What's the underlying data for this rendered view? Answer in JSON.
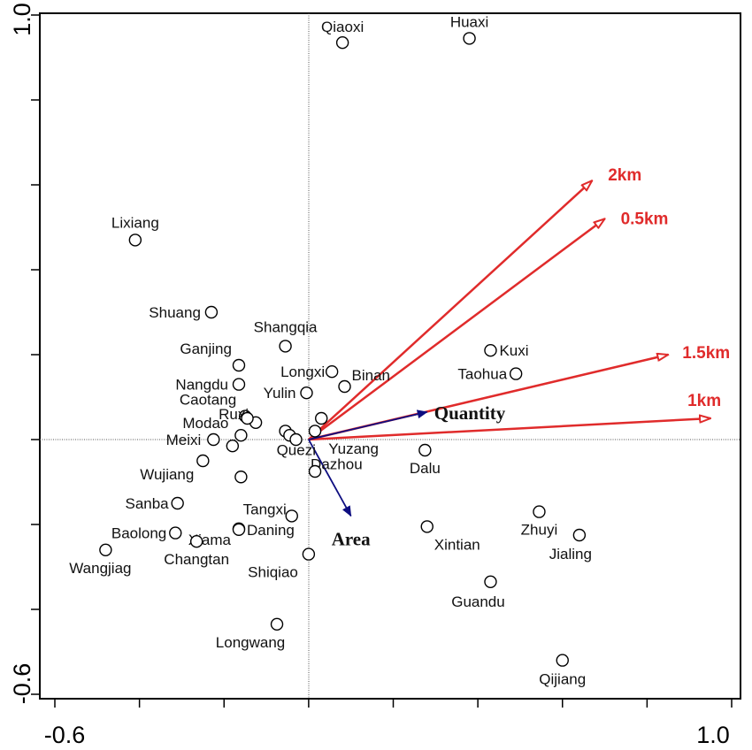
{
  "chart_data": {
    "type": "scatter",
    "xlim": [
      -0.6,
      1.0
    ],
    "ylim": [
      -0.6,
      1.0
    ],
    "x_tick_labels": [
      "-0.6",
      "1.0"
    ],
    "y_tick_labels": [
      "1.0",
      "-0.6"
    ],
    "reference_lines": {
      "x": 0,
      "y": 0,
      "style": "dotted"
    },
    "sites": [
      {
        "name": "Qiaoxi",
        "x": 0.08,
        "y": 0.935
      },
      {
        "name": "Huaxi",
        "x": 0.38,
        "y": 0.945
      },
      {
        "name": "Lixiang",
        "x": -0.41,
        "y": 0.47
      },
      {
        "name": "Shuang",
        "x": -0.23,
        "y": 0.3
      },
      {
        "name": "Shangqia",
        "x": -0.055,
        "y": 0.22
      },
      {
        "name": "Ganjing",
        "x": -0.165,
        "y": 0.175
      },
      {
        "name": "Longxi",
        "x": 0.055,
        "y": 0.16
      },
      {
        "name": "Binan",
        "x": 0.085,
        "y": 0.125
      },
      {
        "name": "Nangdu",
        "x": -0.165,
        "y": 0.13
      },
      {
        "name": "Yulin",
        "x": -0.005,
        "y": 0.11
      },
      {
        "name": "Caotang",
        "x": -0.15,
        "y": 0.055
      },
      {
        "name": "Ruxi",
        "x": -0.125,
        "y": 0.04
      },
      {
        "name": "Modao",
        "x": -0.16,
        "y": 0.01
      },
      {
        "name": "Meixi",
        "x": -0.225,
        "y": 0.0
      },
      {
        "name": "Wujiang",
        "x": -0.25,
        "y": -0.05
      },
      {
        "name": "Kuxi",
        "x": 0.43,
        "y": 0.21
      },
      {
        "name": "Taohua",
        "x": 0.49,
        "y": 0.155
      },
      {
        "name": "Quezi",
        "x": -0.055,
        "y": 0.02
      },
      {
        "name": "Yuzang",
        "x": 0.03,
        "y": 0.05
      },
      {
        "name": "Dazhou",
        "x": 0.015,
        "y": 0.02
      },
      {
        "name": "Dalu",
        "x": 0.275,
        "y": -0.025
      },
      {
        "name": "Sanba",
        "x": -0.31,
        "y": -0.15
      },
      {
        "name": "Xiama",
        "x": -0.165,
        "y": -0.21
      },
      {
        "name": "Daning",
        "x": -0.165,
        "y": -0.212
      },
      {
        "name": "Baolong",
        "x": -0.315,
        "y": -0.22
      },
      {
        "name": "Changtan",
        "x": -0.265,
        "y": -0.24
      },
      {
        "name": "Wangjiag",
        "x": -0.48,
        "y": -0.26
      },
      {
        "name": "Tangxi",
        "x": -0.04,
        "y": -0.18
      },
      {
        "name": "Shiqiao",
        "x": 0.0,
        "y": -0.27
      },
      {
        "name": "Xintian",
        "x": 0.28,
        "y": -0.205
      },
      {
        "name": "Zhuyi",
        "x": 0.545,
        "y": -0.17
      },
      {
        "name": "Jialing",
        "x": 0.64,
        "y": -0.225
      },
      {
        "name": "Guandu",
        "x": 0.43,
        "y": -0.335
      },
      {
        "name": "Longwang",
        "x": -0.075,
        "y": -0.435
      },
      {
        "name": "Qijiang",
        "x": 0.6,
        "y": -0.52
      },
      {
        "name": "",
        "x": -0.045,
        "y": 0.01
      },
      {
        "name": "",
        "x": -0.03,
        "y": 0.0
      },
      {
        "name": "",
        "x": 0.015,
        "y": -0.075
      },
      {
        "name": "",
        "x": -0.18,
        "y": -0.015
      },
      {
        "name": "",
        "x": -0.16,
        "y": -0.088
      },
      {
        "name": "",
        "x": -0.145,
        "y": 0.05
      }
    ],
    "buffer_vectors": [
      {
        "name": "2km",
        "x": 0.67,
        "y": 0.61
      },
      {
        "name": "0.5km",
        "x": 0.7,
        "y": 0.52
      },
      {
        "name": "1.5km",
        "x": 0.85,
        "y": 0.2
      },
      {
        "name": "1km",
        "x": 0.95,
        "y": 0.05
      }
    ],
    "env_vectors": [
      {
        "name": "Quantity",
        "x": 0.28,
        "y": 0.065
      },
      {
        "name": "Area",
        "x": 0.1,
        "y": -0.18
      }
    ],
    "colors": {
      "buffer": "#e02b2b",
      "env": "#0d0d80",
      "points": "#000000"
    }
  }
}
